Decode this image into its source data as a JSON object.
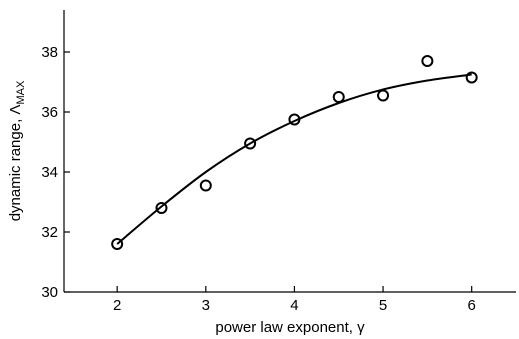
{
  "chart_data": {
    "type": "scatter",
    "xlabel": "power law exponent, γ",
    "ylabel_main": "dynamic range, Λ",
    "ylabel_sub": "MAX",
    "xlim": [
      1.4,
      6.5
    ],
    "ylim": [
      30,
      39.4
    ],
    "xticks": [
      2,
      3,
      4,
      5,
      6
    ],
    "yticks": [
      30,
      32,
      34,
      36,
      38
    ],
    "grid": false,
    "series": [
      {
        "type": "scatter",
        "marker": "open-circle",
        "x": [
          2,
          2.5,
          3,
          3.5,
          4,
          4.5,
          5,
          5.5,
          6
        ],
        "y": [
          31.6,
          32.8,
          33.55,
          34.95,
          35.75,
          36.5,
          36.55,
          37.7,
          37.15
        ]
      },
      {
        "type": "line",
        "x": [
          2,
          2.5,
          3,
          3.5,
          4,
          4.5,
          5,
          5.5,
          6
        ],
        "y": [
          31.6,
          32.85,
          34.0,
          34.95,
          35.7,
          36.3,
          36.75,
          37.05,
          37.25
        ]
      }
    ]
  }
}
